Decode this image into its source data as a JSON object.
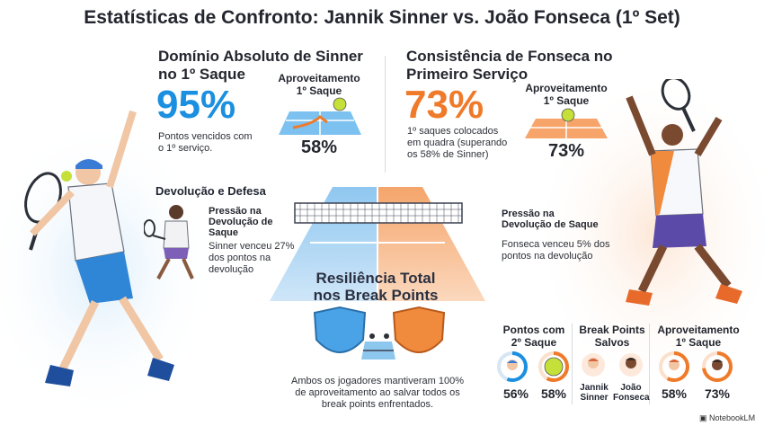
{
  "title": "Estatísticas de Confronto: Jannik Sinner vs. João Fonseca (1º Set)",
  "sinner_serve": {
    "heading_line1": "Domínio Absoluto de Sinner",
    "heading_line2": "no 1º Saque",
    "big_value": "95%",
    "desc_line1": "Pontos vencidos com",
    "desc_line2": "o 1º serviço.",
    "box_label_line1": "Aproveitamento",
    "box_label_line2": "1º Saque",
    "box_value": "58%"
  },
  "fonseca_serve": {
    "heading_line1": "Consistência de Fonseca no",
    "heading_line2": "Primeiro Serviço",
    "big_value": "73%",
    "desc_line1": "1º saques colocados",
    "desc_line2": "em quadra (superando",
    "desc_line3": "os 58% de Sinner)",
    "box_label_line1": "Aproveitamento",
    "box_label_line2": "1º Saque",
    "box_value": "73%"
  },
  "return_defense": {
    "heading": "Devolução e Defesa",
    "sub_line1": "Pressão na",
    "sub_line2": "Devolução de",
    "sub_line3": "Saque",
    "desc_line1": "Sinner venceu 27%",
    "desc_line2": "dos pontos na",
    "desc_line3": "devolução"
  },
  "fonseca_return": {
    "sub_line1": "Pressão na",
    "sub_line2": "Devolução de Saque",
    "desc_line1": "Fonseca venceu 5% dos",
    "desc_line2": "pontos na devolução"
  },
  "break_points": {
    "heading_line1": "Resiliência Total",
    "heading_line2": "nos Break Points",
    "desc_line1": "Ambos os jogadores mantiveram 100%",
    "desc_line2": "de aproveitamento ao salvar todos os",
    "desc_line3": "break points enfrentados."
  },
  "summary": {
    "second_serve": {
      "label_line1": "Pontos com",
      "label_line2": "2º Saque",
      "sinner_value": "56%",
      "fonseca_value": "58%"
    },
    "bp_saved": {
      "label_line1": "Break Points",
      "label_line2": "Salvos",
      "sinner_line1": "Jannik",
      "sinner_line2": "Sinner",
      "fonseca_line1": "João",
      "fonseca_line2": "Fonseca"
    },
    "first_serve": {
      "label_line1": "Aproveitamento",
      "label_line2": "1º Saque",
      "sinner_value": "58%",
      "fonseca_value": "73%"
    }
  },
  "logo": "NotebookLM",
  "colors": {
    "blue": "#1b8fe0",
    "orange": "#ef7a2a",
    "ball": "#c6e03a"
  },
  "progress": {
    "second_serve_sinner": 0.56,
    "second_serve_fonseca": 0.58,
    "first_serve_sinner": 0.58,
    "first_serve_fonseca": 0.73
  }
}
